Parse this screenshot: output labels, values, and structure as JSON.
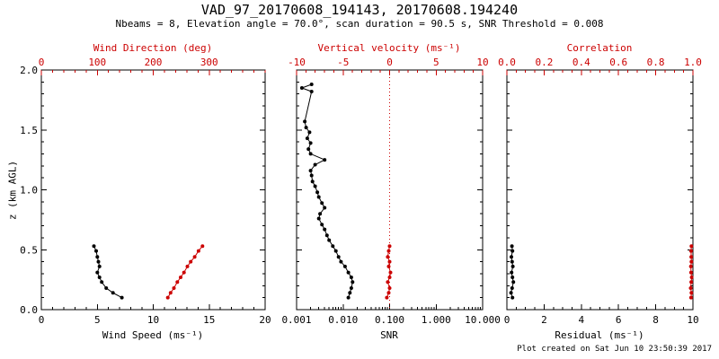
{
  "chart_data": {
    "type": "line",
    "title": "VAD_97_20170608_194143, 20170608.194240",
    "subtitle": "Nbeams = 8, Elevation angle = 70.0°, scan duration = 90.5 s, SNR Threshold = 0.008",
    "footer": "Plot created on Sat Jun 10 23:50:39 2017",
    "ylabel": "z (km AGL)",
    "y_range": [
      0,
      2
    ],
    "y_ticks": [
      0,
      0.5,
      1,
      1.5,
      2
    ],
    "y_tick_labels": [
      "0.0",
      "0.5",
      "1.0",
      "1.5",
      "2.0"
    ],
    "y_minor_step": 0.1,
    "colors": {
      "series_black": "#000000",
      "series_red": "#cc0000"
    },
    "panels": [
      {
        "name": "wind",
        "show_y_labels": true,
        "bottom_axis": {
          "label": "Wind Speed (ms⁻¹)",
          "scale": "linear",
          "range": [
            0,
            20
          ],
          "ticks": [
            0,
            5,
            10,
            15,
            20
          ],
          "tick_labels": [
            "0",
            "5",
            "10",
            "15",
            "20"
          ],
          "minor_step": 1,
          "color": "#000000"
        },
        "top_axis": {
          "label": "Wind Direction (deg)",
          "scale": "linear",
          "range": [
            0,
            400
          ],
          "ticks": [
            0,
            100,
            200,
            300
          ],
          "tick_labels": [
            "0",
            "100",
            "200",
            "300"
          ],
          "minor_step": 20,
          "color": "#cc0000"
        },
        "series": [
          {
            "name": "wind-speed",
            "axis": "bottom",
            "color": "#000000",
            "z": [
              0.1,
              0.14,
              0.18,
              0.23,
              0.27,
              0.31,
              0.36,
              0.4,
              0.44,
              0.49,
              0.53
            ],
            "values": [
              7.2,
              6.4,
              5.8,
              5.4,
              5.2,
              5.0,
              5.2,
              5.1,
              5.0,
              4.9,
              4.7
            ]
          },
          {
            "name": "wind-direction",
            "axis": "top",
            "color": "#cc0000",
            "z": [
              0.1,
              0.14,
              0.18,
              0.23,
              0.27,
              0.31,
              0.36,
              0.4,
              0.44,
              0.49,
              0.53
            ],
            "values": [
              226,
              231,
              237,
              243,
              249,
              255,
              261,
              267,
              274,
              281,
              288
            ]
          }
        ]
      },
      {
        "name": "snr",
        "show_y_labels": false,
        "bottom_axis": {
          "label": "SNR",
          "scale": "log",
          "range": [
            0.001,
            10
          ],
          "ticks": [
            0.001,
            0.01,
            0.1,
            1,
            10
          ],
          "tick_labels": [
            "0.001",
            "0.010",
            "0.100",
            "1.000",
            "10.000"
          ],
          "color": "#000000"
        },
        "top_axis": {
          "label": "Vertical velocity (ms⁻¹)",
          "scale": "linear",
          "range": [
            -10,
            10
          ],
          "ticks": [
            -10,
            -5,
            0,
            5,
            10
          ],
          "tick_labels": [
            "-10",
            "-5",
            "0",
            "5",
            "10"
          ],
          "minor_step": 1,
          "color": "#cc0000"
        },
        "ref_line": {
          "axis": "top",
          "value": 0,
          "color": "#cc0000",
          "style": "dotted"
        },
        "series": [
          {
            "name": "snr-profile",
            "axis": "bottom",
            "color": "#000000",
            "z": [
              0.1,
              0.14,
              0.18,
              0.23,
              0.27,
              0.31,
              0.36,
              0.4,
              0.44,
              0.49,
              0.53,
              0.58,
              0.62,
              0.67,
              0.71,
              0.76,
              0.8,
              0.85,
              0.89,
              0.94,
              0.98,
              1.03,
              1.07,
              1.12,
              1.16,
              1.21,
              1.25,
              1.3,
              1.34,
              1.39,
              1.43,
              1.48,
              1.52,
              1.57,
              1.82,
              1.85,
              1.88
            ],
            "values": [
              0.013,
              0.014,
              0.015,
              0.016,
              0.015,
              0.013,
              0.011,
              0.009,
              0.008,
              0.007,
              0.006,
              0.005,
              0.0045,
              0.004,
              0.0035,
              0.003,
              0.0032,
              0.004,
              0.0035,
              0.003,
              0.0028,
              0.0025,
              0.0022,
              0.0021,
              0.002,
              0.0025,
              0.004,
              0.002,
              0.0018,
              0.002,
              0.0017,
              0.0019,
              0.0016,
              0.0015,
              0.0021,
              0.0013,
              0.0021
            ]
          },
          {
            "name": "vertical-velocity",
            "axis": "top",
            "color": "#cc0000",
            "z": [
              0.1,
              0.14,
              0.18,
              0.23,
              0.27,
              0.31,
              0.36,
              0.4,
              0.44,
              0.49,
              0.53
            ],
            "values": [
              -0.3,
              -0.1,
              0.0,
              -0.2,
              0.0,
              0.1,
              -0.1,
              0.0,
              -0.2,
              -0.1,
              0.0
            ]
          }
        ]
      },
      {
        "name": "residual",
        "show_y_labels": false,
        "bottom_axis": {
          "label": "Residual (ms⁻¹)",
          "scale": "linear",
          "range": [
            0,
            10
          ],
          "ticks": [
            0,
            2,
            4,
            6,
            8,
            10
          ],
          "tick_labels": [
            "0",
            "2",
            "4",
            "6",
            "8",
            "10"
          ],
          "minor_step": 0.5,
          "color": "#000000"
        },
        "top_axis": {
          "label": "Correlation",
          "scale": "linear",
          "range": [
            0,
            1
          ],
          "ticks": [
            0,
            0.2,
            0.4,
            0.6,
            0.8,
            1.0
          ],
          "tick_labels": [
            "0.0",
            "0.2",
            "0.4",
            "0.6",
            "0.8",
            "1.0"
          ],
          "minor_step": 0.05,
          "color": "#cc0000"
        },
        "series": [
          {
            "name": "residual-profile",
            "axis": "bottom",
            "color": "#000000",
            "z": [
              0.1,
              0.14,
              0.18,
              0.23,
              0.27,
              0.31,
              0.36,
              0.4,
              0.44,
              0.49,
              0.53
            ],
            "values": [
              0.3,
              0.22,
              0.28,
              0.35,
              0.3,
              0.25,
              0.32,
              0.28,
              0.24,
              0.3,
              0.27
            ]
          },
          {
            "name": "correlation-profile",
            "axis": "top",
            "color": "#cc0000",
            "z": [
              0.1,
              0.14,
              0.18,
              0.23,
              0.27,
              0.31,
              0.36,
              0.4,
              0.44,
              0.49,
              0.53
            ],
            "values": [
              0.99,
              0.992,
              0.988,
              0.991,
              0.993,
              0.99,
              0.989,
              0.992,
              0.991,
              0.99,
              0.992
            ]
          }
        ]
      }
    ]
  }
}
